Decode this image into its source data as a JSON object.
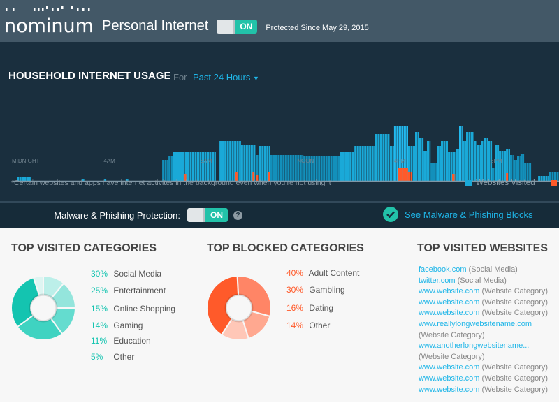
{
  "header": {
    "brand": "nominum",
    "app_title": "Personal Internet",
    "toggle_label": "ON",
    "protected_since": "Protected Since May 29, 2015"
  },
  "usage": {
    "title": "HOUSEHOLD INTERNET USAGE",
    "for_label": "For",
    "range": "Past 24 Hours",
    "note": "*Certain websites and apps have internet activites in the background even when you’re not using it",
    "legend": [
      {
        "label": "Websites Visited",
        "color": "#1aa9d8"
      },
      {
        "label": "",
        "color": "#ff5a2a"
      }
    ]
  },
  "chart_data": {
    "type": "bar",
    "x_unit": "hour of day",
    "x_ticks": [
      {
        "hour": 0,
        "label": "MIDNIGHT"
      },
      {
        "hour": 4,
        "label": "4AM"
      },
      {
        "hour": 8,
        "label": "8AM"
      },
      {
        "hour": 12,
        "label": "NOON"
      },
      {
        "hour": 16,
        "label": "4PM"
      },
      {
        "hour": 20,
        "label": "8PM"
      }
    ],
    "xlim": [
      0,
      22.54
    ],
    "series": [
      {
        "name": "Websites Visited",
        "color": "#1aa9d8",
        "segments": [
          [
            0.12,
            0.69,
            5
          ],
          [
            2.8,
            2.92,
            3
          ],
          [
            3.73,
            3.84,
            3
          ],
          [
            4.62,
            4.74,
            3
          ],
          [
            6.13,
            6.39,
            30
          ],
          [
            6.39,
            6.56,
            36
          ],
          [
            6.56,
            8.35,
            42
          ],
          [
            8.5,
            9.39,
            57
          ],
          [
            9.39,
            10.0,
            52
          ],
          [
            10.0,
            10.14,
            37
          ],
          [
            10.14,
            10.6,
            50
          ],
          [
            10.6,
            11.97,
            37
          ],
          [
            11.97,
            13.47,
            36
          ],
          [
            13.47,
            14.08,
            42
          ],
          [
            14.08,
            14.94,
            50
          ],
          [
            14.94,
            15.55,
            67
          ],
          [
            15.55,
            15.72,
            50
          ],
          [
            15.72,
            16.3,
            79
          ],
          [
            16.3,
            16.59,
            50
          ],
          [
            16.59,
            16.76,
            70
          ],
          [
            16.76,
            16.94,
            61
          ],
          [
            16.94,
            17.08,
            43
          ],
          [
            17.08,
            17.23,
            57
          ],
          [
            17.23,
            17.51,
            26
          ],
          [
            17.51,
            17.66,
            50
          ],
          [
            17.66,
            17.95,
            57
          ],
          [
            17.95,
            18.27,
            42
          ],
          [
            18.27,
            18.41,
            46
          ],
          [
            18.41,
            18.55,
            78
          ],
          [
            18.55,
            18.7,
            57
          ],
          [
            18.7,
            19.02,
            70
          ],
          [
            19.02,
            19.16,
            57
          ],
          [
            19.16,
            19.31,
            52
          ],
          [
            19.31,
            19.45,
            57
          ],
          [
            19.45,
            19.6,
            61
          ],
          [
            19.6,
            19.77,
            57
          ],
          [
            19.77,
            19.91,
            19
          ],
          [
            19.91,
            20.06,
            52
          ],
          [
            20.06,
            20.35,
            43
          ],
          [
            20.35,
            20.52,
            46
          ],
          [
            20.52,
            20.66,
            37
          ],
          [
            20.66,
            20.81,
            30
          ],
          [
            20.81,
            20.95,
            36
          ],
          [
            20.95,
            21.1,
            39
          ],
          [
            21.1,
            21.39,
            26
          ],
          [
            21.68,
            22.14,
            7
          ],
          [
            22.14,
            22.54,
            13
          ]
        ]
      },
      {
        "name": "",
        "color": "#ff5a2a",
        "segments": [
          [
            7.02,
            7.14,
            10
          ],
          [
            9.16,
            9.25,
            13
          ],
          [
            9.86,
            9.97,
            12
          ],
          [
            10.0,
            10.12,
            9
          ],
          [
            10.49,
            10.6,
            12
          ],
          [
            15.87,
            16.3,
            18
          ],
          [
            16.3,
            16.45,
            12
          ],
          [
            18.12,
            18.24,
            10
          ],
          [
            20.35,
            20.46,
            11
          ]
        ]
      }
    ],
    "ylim": [
      0,
      80
    ]
  },
  "malware": {
    "label": "Malware & Phishing Protection:",
    "toggle_label": "ON",
    "help": "?",
    "blocks_link": "See Malware & Phishing Blocks"
  },
  "visited": {
    "title": "TOP VISITED CATEGORIES",
    "items": [
      {
        "pct": "30%",
        "value": 30,
        "label": "Social Media",
        "color": "#14c4b0"
      },
      {
        "pct": "25%",
        "value": 25,
        "label": "Entertainment",
        "color": "#3fd3c1"
      },
      {
        "pct": "15%",
        "value": 15,
        "label": "Online Shopping",
        "color": "#64dccf"
      },
      {
        "pct": "14%",
        "value": 14,
        "label": "Gaming",
        "color": "#94e5dc"
      },
      {
        "pct": "11%",
        "value": 11,
        "label": "Education",
        "color": "#bcefe9"
      },
      {
        "pct": "5%",
        "value": 5,
        "label": "Other",
        "color": "#def5f2"
      }
    ],
    "accent": "#14c4b0"
  },
  "blocked": {
    "title": "TOP BLOCKED CATEGORIES",
    "items": [
      {
        "pct": "40%",
        "value": 40,
        "label": "Adult Content",
        "color": "#ff5a2a"
      },
      {
        "pct": "30%",
        "value": 30,
        "label": "Gambling",
        "color": "#ff8566"
      },
      {
        "pct": "16%",
        "value": 16,
        "label": "Dating",
        "color": "#ffa890"
      },
      {
        "pct": "14%",
        "value": 14,
        "label": "Other",
        "color": "#ffc7b7"
      }
    ],
    "accent": "#ff5a2a"
  },
  "websites": {
    "title": "TOP VISITED WEBSITES",
    "items": [
      {
        "url": "facebook.com",
        "category": "(Social Media)"
      },
      {
        "url": "twitter.com",
        "category": "(Social Media)"
      },
      {
        "url": "www.website.com",
        "category": "(Website Category)"
      },
      {
        "url": "www.website.com",
        "category": "(Website Category)"
      },
      {
        "url": "www.website.com",
        "category": "(Website Category)"
      },
      {
        "url": "www.reallylongwebsitename.com",
        "category": "(Website Category)"
      },
      {
        "url": "www.anotherlongwebsitename...",
        "category": "(Website Category)"
      },
      {
        "url": "www.website.com",
        "category": "(Website Category)"
      },
      {
        "url": "www.website.com",
        "category": "(Website Category)"
      },
      {
        "url": "www.website.com",
        "category": "(Website Category)"
      }
    ]
  }
}
